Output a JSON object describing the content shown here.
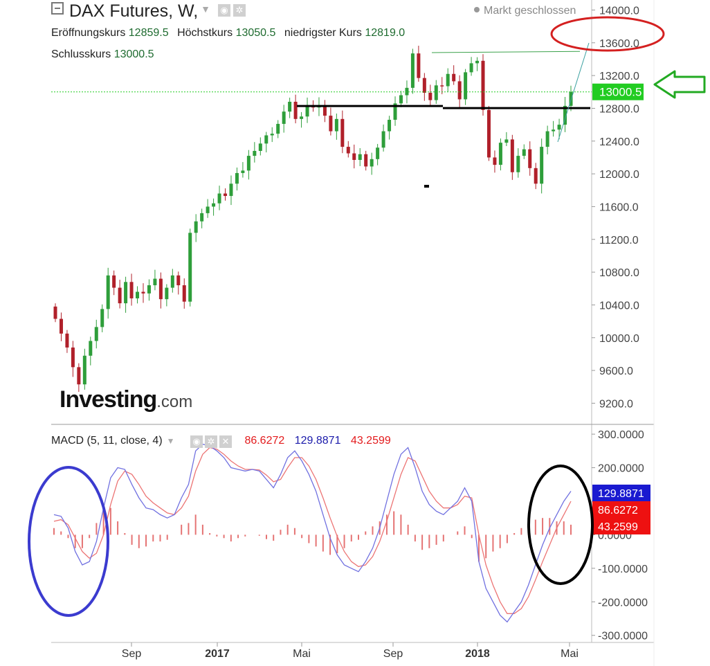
{
  "header": {
    "title": "DAX Futures, W,",
    "open_label": "Eröffnungskurs",
    "open_value": "12859.5",
    "high_label": "Höchstkurs",
    "high_value": "13050.5",
    "low_label": "niedrigster Kurs",
    "low_value": "12819.0",
    "close_label": "Schlusskurs",
    "close_value": "13000.5",
    "market_status": "Markt geschlossen"
  },
  "logo": {
    "brand": "Investing",
    "domain": ".com"
  },
  "icons": {
    "collapse": "minus-square-icon",
    "dropdown": "chevron-down-icon",
    "eye": "eye-icon",
    "settings": "gear-icon",
    "close": "close-icon"
  },
  "colors": {
    "up": "#2e9e3a",
    "down": "#b0202a",
    "macd_line": "#7070e0",
    "signal_line": "#ec7474",
    "histogram": "#e57373",
    "last_price": "#22cc22",
    "ellipse_blue": "#3b3bcf",
    "ellipse_red": "#d42020",
    "ellipse_black": "#000000",
    "arrow": "#22aa22"
  },
  "chart_data": [
    {
      "type": "candlestick",
      "title": "DAX Futures, W,",
      "y_ticks": [
        "14000.0",
        "13600.0",
        "13200.0",
        "12800.0",
        "12400.0",
        "12000.0",
        "11600.0",
        "11200.0",
        "10800.0",
        "10400.0",
        "10000.0",
        "9600.0",
        "9200.0"
      ],
      "ylim": [
        8950,
        14080
      ],
      "last_price": 13000.5,
      "last_price_label": "13000.5",
      "resistance_level": 12820,
      "x_ticks": [
        "Sep",
        "2017",
        "Mai",
        "Sep",
        "2018",
        "Mai"
      ],
      "grid": false,
      "closes": [
        10230,
        10050,
        9880,
        9640,
        9430,
        9780,
        9960,
        10130,
        10350,
        10760,
        10610,
        10420,
        10680,
        10480,
        10560,
        10540,
        10640,
        10720,
        10470,
        10610,
        10760,
        10640,
        10440,
        11280,
        11420,
        11520,
        11600,
        11640,
        11760,
        11730,
        11880,
        12010,
        12040,
        12220,
        12280,
        12370,
        12470,
        12490,
        12610,
        12760,
        12880,
        12670,
        12700,
        12840,
        12810,
        12840,
        12710,
        12520,
        12670,
        12330,
        12250,
        12170,
        12240,
        12090,
        12180,
        12320,
        12520,
        12660,
        12860,
        12960,
        13050,
        13470,
        13170,
        12990,
        12900,
        13080,
        13070,
        13220,
        13130,
        12910,
        13240,
        13350,
        13380,
        12780,
        12200,
        12110,
        12380,
        12420,
        12020,
        12220,
        12300,
        12070,
        11880,
        12330,
        12520,
        12540,
        12600,
        12830,
        13000
      ]
    },
    {
      "type": "line",
      "title": "MACD (5, 11, close, 4)",
      "values_label": [
        "86.6272",
        "129.8871",
        "43.2599"
      ],
      "y_ticks": [
        "300.0000",
        "200.0000",
        "100.0000",
        "0.0000",
        "-100.0000",
        "-200.0000",
        "-300.0000"
      ],
      "ylim": [
        -315,
        325
      ],
      "series": [
        {
          "name": "MACD",
          "values": [
            60,
            55,
            20,
            -50,
            -90,
            -80,
            -20,
            80,
            170,
            200,
            195,
            150,
            110,
            80,
            75,
            60,
            50,
            60,
            110,
            150,
            250,
            270,
            265,
            250,
            230,
            200,
            195,
            190,
            195,
            190,
            165,
            140,
            180,
            230,
            250,
            220,
            180,
            130,
            60,
            -10,
            -60,
            -90,
            -100,
            -110,
            -80,
            -40,
            20,
            100,
            180,
            240,
            260,
            200,
            130,
            90,
            70,
            60,
            80,
            100,
            140,
            100,
            -80,
            -160,
            -200,
            -240,
            -260,
            -230,
            -200,
            -150,
            -90,
            -30,
            20,
            60,
            100,
            130
          ]
        },
        {
          "name": "Signal",
          "values": [
            40,
            45,
            30,
            -10,
            -50,
            -70,
            -55,
            0,
            90,
            160,
            190,
            180,
            150,
            115,
            95,
            80,
            65,
            60,
            80,
            115,
            190,
            240,
            260,
            255,
            240,
            220,
            205,
            195,
            195,
            193,
            178,
            158,
            165,
            200,
            230,
            230,
            205,
            165,
            110,
            50,
            -5,
            -50,
            -80,
            -95,
            -90,
            -65,
            -20,
            40,
            110,
            180,
            230,
            220,
            175,
            130,
            100,
            80,
            80,
            90,
            115,
            110,
            0,
            -90,
            -150,
            -200,
            -235,
            -235,
            -220,
            -185,
            -135,
            -80,
            -30,
            20,
            60,
            100
          ]
        },
        {
          "name": "Histogram",
          "values": [
            20,
            10,
            -10,
            -40,
            -40,
            -10,
            35,
            80,
            80,
            40,
            5,
            -30,
            -40,
            -35,
            -20,
            -20,
            -15,
            0,
            30,
            35,
            60,
            30,
            5,
            -5,
            -10,
            -20,
            -10,
            -5,
            0,
            -3,
            -13,
            -18,
            15,
            30,
            20,
            -10,
            -25,
            -35,
            -50,
            -60,
            -55,
            -40,
            -20,
            -15,
            10,
            25,
            40,
            60,
            70,
            60,
            30,
            -20,
            -45,
            -40,
            -30,
            -20,
            0,
            10,
            25,
            -10,
            -80,
            -70,
            -50,
            -40,
            -25,
            5,
            20,
            35,
            45,
            50,
            50,
            40,
            40,
            30
          ]
        }
      ]
    }
  ]
}
